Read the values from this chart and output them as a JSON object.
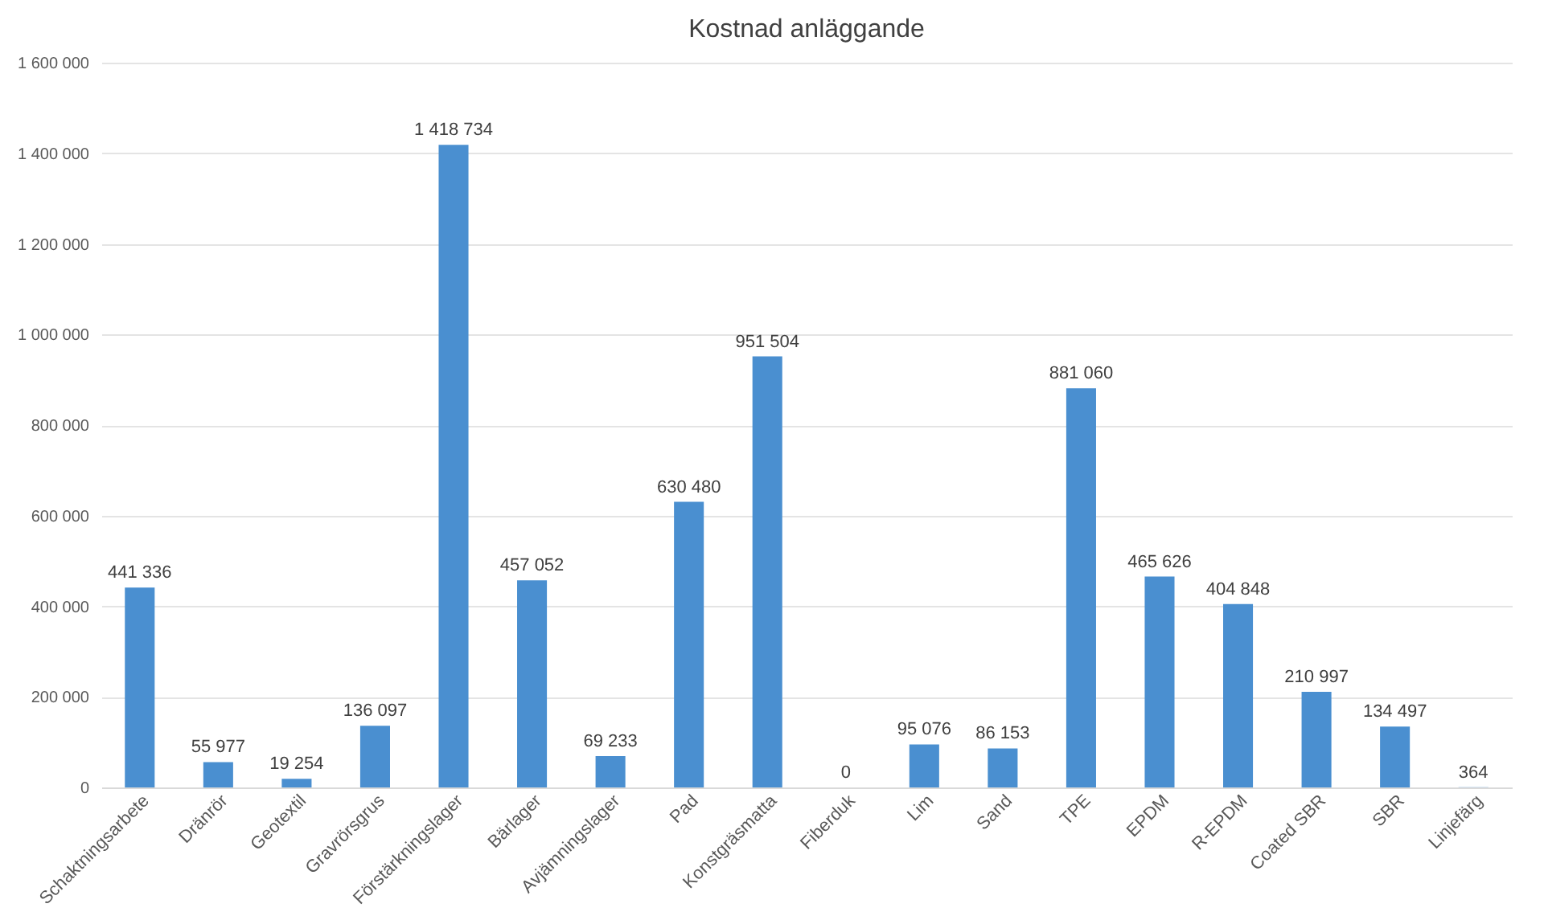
{
  "chart_data": {
    "type": "bar",
    "title": "Kostnad anläggande",
    "categories": [
      "Schaktningsarbete",
      "Dränrör",
      "Geotextil",
      "Gravrörsgrus",
      "Förstärkningslager",
      "Bärlager",
      "Avjämningslager",
      "Pad",
      "Konstgräsmatta",
      "Fiberduk",
      "Lim",
      "Sand",
      "TPE",
      "EPDM",
      "R-EPDM",
      "Coated SBR",
      "SBR",
      "Linjefärg"
    ],
    "values": [
      441336,
      55977,
      19254,
      136097,
      1418734,
      457052,
      69233,
      630480,
      951504,
      0,
      95076,
      86153,
      881060,
      465626,
      404848,
      210997,
      134497,
      364
    ],
    "value_labels": [
      "441 336",
      "55 977",
      "19 254",
      "136 097",
      "1 418 734",
      "457 052",
      "69 233",
      "630 480",
      "951 504",
      "0",
      "95 076",
      "86 153",
      "881 060",
      "465 626",
      "404 848",
      "210 997",
      "134 497",
      "364"
    ],
    "color": "#4a8fd0",
    "ylim": [
      0,
      1600000
    ],
    "yticks": [
      {
        "value": 0,
        "label": "0"
      },
      {
        "value": 200000,
        "label": "200 000"
      },
      {
        "value": 400000,
        "label": "400 000"
      },
      {
        "value": 600000,
        "label": "600 000"
      },
      {
        "value": 800000,
        "label": "800 000"
      },
      {
        "value": 1000000,
        "label": "1 000 000"
      },
      {
        "value": 1200000,
        "label": "1 200 000"
      },
      {
        "value": 1400000,
        "label": "1 400 000"
      },
      {
        "value": 1600000,
        "label": "1 600 000"
      }
    ],
    "grid": "y"
  }
}
